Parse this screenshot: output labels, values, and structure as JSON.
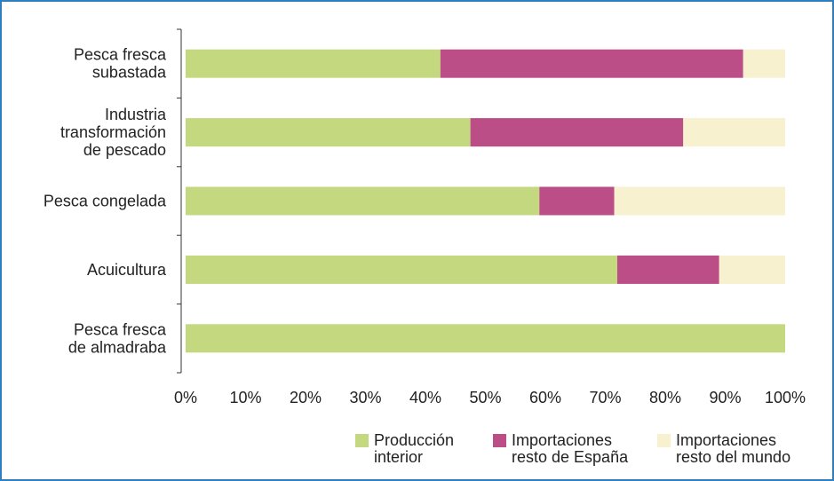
{
  "chart_data": {
    "type": "bar",
    "orientation": "horizontal",
    "stacked": true,
    "categories": [
      [
        "Pesca fresca",
        "subastada"
      ],
      [
        "Industria",
        "transformación",
        "de pescado"
      ],
      [
        "Pesca congelada"
      ],
      [
        "Acuicultura"
      ],
      [
        "Pesca fresca",
        "de almadraba"
      ]
    ],
    "series": [
      {
        "name": [
          "Producción",
          "interior"
        ],
        "color": "#c4d97f",
        "values": [
          42.5,
          47.5,
          59,
          72,
          100
        ]
      },
      {
        "name": [
          "Importaciones",
          "resto de España"
        ],
        "color": "#bb4e86",
        "values": [
          50.5,
          35.5,
          12.5,
          17,
          0
        ]
      },
      {
        "name": [
          "Importaciones",
          "resto del mundo"
        ],
        "color": "#f7f1cf",
        "values": [
          7,
          17,
          28.5,
          11,
          0
        ]
      }
    ],
    "xticks": [
      "0%",
      "10%",
      "20%",
      "30%",
      "40%",
      "50%",
      "60%",
      "70%",
      "80%",
      "90%",
      "100%"
    ],
    "xlim": [
      0,
      100
    ],
    "grid": false,
    "legend_position": "bottom-right"
  }
}
